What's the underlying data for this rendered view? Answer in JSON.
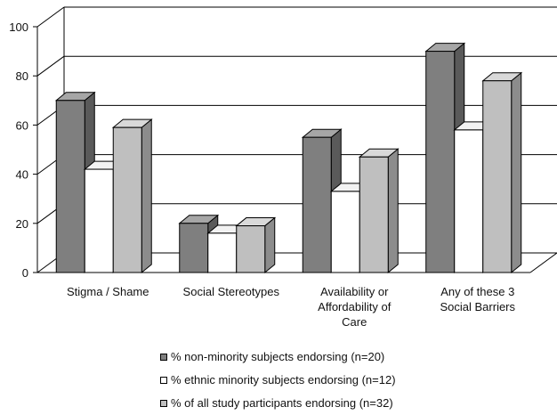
{
  "chart_data": {
    "type": "bar",
    "title": "",
    "xlabel": "",
    "ylabel": "",
    "ylim": [
      0,
      100
    ],
    "yticks": [
      "0",
      "20",
      "40",
      "60",
      "80",
      "100"
    ],
    "grid": true,
    "legend_position": "bottom",
    "categories": [
      [
        "Stigma / Shame"
      ],
      [
        "Social Stereotypes"
      ],
      [
        "Availability or",
        "Affordability of",
        "Care"
      ],
      [
        "Any of these 3",
        "Social Barriers"
      ]
    ],
    "series": [
      {
        "name": "% non-minority subjects endorsing (n=20)",
        "values": [
          70,
          20,
          55,
          90
        ],
        "color": "#7f7f7f"
      },
      {
        "name": "% ethnic minority subjects endorsing (n=12)",
        "values": [
          42,
          16,
          33,
          58
        ],
        "color": "#ffffff"
      },
      {
        "name": "% of all study participants endorsing (n=32)",
        "values": [
          59,
          19,
          47,
          78
        ],
        "color": "#bfbfbf"
      }
    ]
  }
}
